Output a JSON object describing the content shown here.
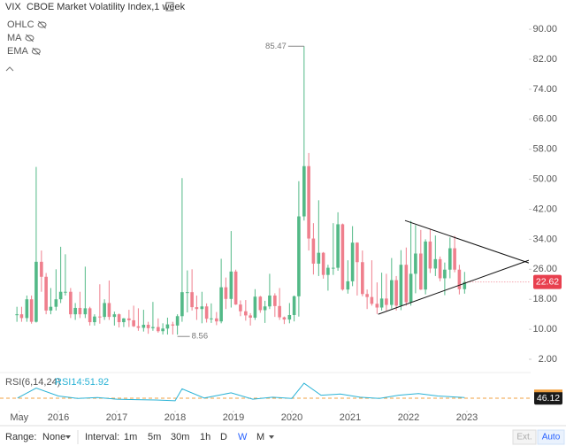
{
  "chart_data": {
    "type": "candlestick",
    "symbol": "VIX",
    "title": "CBOE Market Volatility Index,1 week",
    "indicators": [
      "OHLC",
      "MA",
      "EMA"
    ],
    "up_color": "#53b987",
    "down_color": "#ef7f8d",
    "x": [
      2015.29,
      2015.37,
      2015.46,
      2015.54,
      2015.62,
      2015.71,
      2015.79,
      2015.87,
      2015.96,
      2016.04,
      2016.12,
      2016.21,
      2016.29,
      2016.37,
      2016.46,
      2016.54,
      2016.62,
      2016.71,
      2016.79,
      2016.87,
      2016.96,
      2017.04,
      2017.12,
      2017.21,
      2017.29,
      2017.37,
      2017.46,
      2017.54,
      2017.62,
      2017.71,
      2017.79,
      2017.87,
      2017.96,
      2018.04,
      2018.12,
      2018.21,
      2018.29,
      2018.37,
      2018.46,
      2018.54,
      2018.62,
      2018.71,
      2018.79,
      2018.87,
      2018.96,
      2019.04,
      2019.12,
      2019.21,
      2019.29,
      2019.37,
      2019.46,
      2019.54,
      2019.62,
      2019.71,
      2019.79,
      2019.87,
      2019.96,
      2020.04,
      2020.12,
      2020.21,
      2020.29,
      2020.37,
      2020.46,
      2020.54,
      2020.62,
      2020.71,
      2020.79,
      2020.87,
      2020.96,
      2021.04,
      2021.12,
      2021.21,
      2021.29,
      2021.37,
      2021.46,
      2021.54,
      2021.62,
      2021.71,
      2021.79,
      2021.87,
      2021.96,
      2022.04,
      2022.12,
      2022.21,
      2022.29,
      2022.37,
      2022.46,
      2022.54,
      2022.62,
      2022.71,
      2022.79,
      2022.87,
      2022.96
    ],
    "open": [
      14,
      14,
      13,
      18,
      12,
      28,
      24,
      15,
      16,
      18,
      20,
      20,
      14,
      15.7,
      14,
      15.6,
      11.9,
      13.4,
      13.3,
      17,
      13.3,
      14,
      11.9,
      12.9,
      12.4,
      10.8,
      10.4,
      11.2,
      10.3,
      10.6,
      9.5,
      10.2,
      11.3,
      11,
      13.5,
      19.9,
      19.9,
      15.9,
      15.4,
      16.1,
      12.8,
      12.9,
      12.1,
      21.2,
      18.1,
      25.4,
      16.6,
      14.8,
      13.7,
      13.1,
      18.7,
      15.1,
      16.1,
      19,
      16.2,
      13.2,
      12.6,
      13.8,
      18.8,
      40.1,
      53.5,
      34.2,
      27.5,
      30.4,
      24.5,
      26.4,
      26.4,
      38,
      20.6,
      22.8,
      33.1,
      27.9,
      19.4,
      18.6,
      16.8,
      15.8,
      18.2,
      16.5,
      23.1,
      16.3,
      27.2,
      17.2,
      24.8,
      30.2,
      20.6,
      33.4,
      26.2,
      28.7,
      23.6,
      25.9,
      31.6,
      25.9,
      20.7
    ],
    "high": [
      16,
      16,
      19,
      19,
      53.3,
      31,
      25,
      21,
      26,
      32,
      30,
      21,
      17,
      20,
      26.7,
      16,
      14,
      22,
      18,
      23,
      14.7,
      14.2,
      13,
      15.2,
      16.3,
      15.6,
      15.2,
      12,
      17.3,
      12.9,
      11.6,
      13.1,
      12,
      14,
      50.3,
      25.7,
      26,
      19,
      20,
      16.9,
      16.9,
      14.6,
      28.8,
      23.8,
      36.2,
      25.9,
      17.7,
      17.8,
      14.3,
      20.7,
      18.9,
      17.6,
      24.8,
      19.6,
      21,
      13.4,
      17,
      19,
      49.5,
      85.47,
      57,
      38.3,
      44.4,
      30.6,
      27.2,
      38.3,
      41.2,
      38.2,
      28.4,
      37.5,
      33.2,
      31,
      20.6,
      28.4,
      22.5,
      25.1,
      24.8,
      29,
      24.2,
      31.1,
      31.8,
      38.9,
      37.8,
      36.5,
      34,
      36.6,
      35,
      29.4,
      27.8,
      34.5,
      34.9,
      27.2,
      25.3
    ],
    "low": [
      12,
      12,
      12,
      11.5,
      11.8,
      20,
      14,
      14,
      15,
      17,
      19,
      13,
      12.5,
      13,
      13,
      11,
      11,
      11.5,
      12.5,
      12.5,
      11,
      10.5,
      10.6,
      10.6,
      10.6,
      9.6,
      9.4,
      8.8,
      9.6,
      9.1,
      8.6,
      8.6,
      8.6,
      8.56,
      12,
      14.5,
      15,
      12.5,
      11.6,
      11.8,
      11.7,
      11.1,
      11.6,
      15.4,
      15.8,
      16.5,
      13.5,
      12.3,
      11,
      12.5,
      14.4,
      11.7,
      15.4,
      13.3,
      12.5,
      11.4,
      11.6,
      12.1,
      13.4,
      39,
      31,
      24.6,
      24.2,
      23.5,
      20.3,
      24.5,
      25.6,
      20.3,
      19.5,
      21.5,
      19,
      18.8,
      15.4,
      16.3,
      14.1,
      15,
      15,
      15.5,
      15,
      15.1,
      16.3,
      16.3,
      19.6,
      20.5,
      19.3,
      25,
      24.2,
      22.8,
      19.1,
      23.6,
      25.2,
      19.3,
      19.5
    ],
    "close": [
      14,
      13,
      18,
      12,
      28,
      24,
      15,
      16,
      18,
      20,
      20,
      14,
      15.7,
      14,
      15.6,
      11.9,
      13.4,
      13.3,
      17,
      13.3,
      14,
      11.9,
      12.9,
      12.4,
      10.8,
      10.4,
      11.2,
      10.3,
      10.6,
      9.5,
      10.2,
      11.3,
      11,
      13.5,
      19.9,
      19.9,
      15.9,
      15.4,
      16.1,
      12.8,
      12.9,
      12.1,
      21.2,
      18.1,
      25.4,
      16.6,
      14.8,
      13.7,
      13.1,
      18.7,
      15.1,
      16.1,
      19,
      16.2,
      13.2,
      12.6,
      13.8,
      18.8,
      40.1,
      53.5,
      34.2,
      27.5,
      30.4,
      24.5,
      26.4,
      26.4,
      38,
      20.6,
      22.8,
      33.1,
      27.9,
      19.4,
      18.6,
      16.8,
      15.8,
      18.2,
      16.5,
      23.1,
      16.3,
      27.2,
      17.2,
      24.8,
      30.2,
      20.6,
      33.4,
      26.2,
      28.7,
      23.6,
      25.9,
      31.6,
      25.9,
      20.7,
      22.62
    ],
    "xlim": [
      2015,
      2023.94
    ],
    "xticks": [
      {
        "value": 2015.33,
        "label": "May"
      },
      2016,
      2017,
      2018,
      2019,
      2020,
      2021,
      2022,
      2023
    ],
    "ylim": [
      -1.3,
      97.8
    ],
    "yticks": [
      {
        "value": 2,
        "label": "2.00"
      },
      {
        "value": 10,
        "label": "10.00"
      },
      {
        "value": 18,
        "label": "18.00"
      },
      {
        "value": 26,
        "label": "26.00"
      },
      {
        "value": 34,
        "label": "34.00"
      },
      {
        "value": 42,
        "label": "42.00"
      },
      {
        "value": 50,
        "label": "50.00"
      },
      {
        "value": 58,
        "label": "58.00"
      },
      {
        "value": 66,
        "label": "66.00"
      },
      {
        "value": 74,
        "label": "74.00"
      },
      {
        "value": 82,
        "label": "82.00"
      },
      {
        "value": 90,
        "label": "90.00"
      }
    ],
    "trendlines": [
      [
        2021.48,
        14.0,
        2024.06,
        28.4
      ],
      [
        2021.94,
        39.0,
        2024.06,
        27.7
      ]
    ],
    "rsi": {
      "label": "RSI(6,14,24)",
      "reading": "RSI14:51.92",
      "color": "#2bb3d6",
      "ylim": [
        0,
        100
      ],
      "x": [
        2015.3,
        2015.62,
        2016.0,
        2016.33,
        2016.67,
        2017.0,
        2017.33,
        2017.67,
        2018.0,
        2018.12,
        2018.5,
        2018.96,
        2019.33,
        2019.67,
        2020.0,
        2020.21,
        2020.5,
        2020.83,
        2021.17,
        2021.5,
        2021.83,
        2022.17,
        2022.5,
        2022.96
      ],
      "values": [
        45,
        70,
        50,
        44,
        46,
        42,
        41,
        40,
        38,
        68,
        45,
        58,
        42,
        47,
        44,
        82,
        52,
        55,
        47,
        44,
        52,
        56,
        50,
        46.12
      ]
    }
  },
  "toolbar": {
    "range_label": "Range:",
    "range_value": "None",
    "interval_label": "Interval:",
    "intervals": [
      "1m",
      "5m",
      "30m",
      "1h",
      "D",
      "W",
      "M"
    ],
    "ext": "Ext.",
    "auto": "Auto"
  }
}
